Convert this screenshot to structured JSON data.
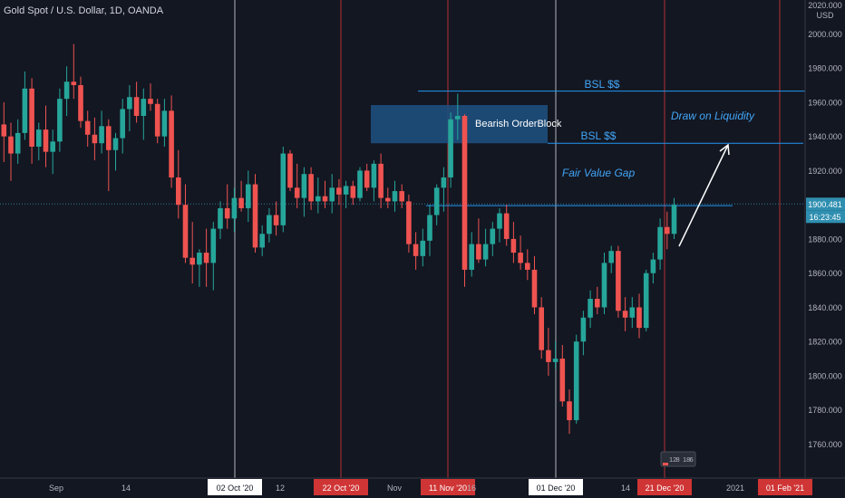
{
  "symbol_title": "Gold Spot / U.S. Dollar, 1D, OANDA",
  "colors": {
    "background": "#131722",
    "axis_text": "#b2b5be",
    "up": "#26a69a",
    "down": "#ef5350",
    "guide_line": "#2196f3",
    "annotation_text": "#42a5f5",
    "orderblock_fill": "#1e4f7d",
    "vline_white": "#cfd2d8",
    "vline_red": "#d03535",
    "price_tag": "#2f8fb0",
    "arrow": "#ffffff"
  },
  "annotations": {
    "bsl_top": "BSL $$",
    "bsl_mid": "BSL $$",
    "orderblock": "Bearish OrderBlock",
    "draw_liquidity": "Draw on Liquidity",
    "fair_value_gap": "Fair Value Gap"
  },
  "overlays": {
    "bsl_top_price": 1966.5,
    "bsl_mid_price": 1936,
    "target_line_price": 1899.5,
    "orderblock_range": [
      1936,
      1952
    ],
    "arrow_from": [
      20,
      1878
    ],
    "arrow_to": [
      21.8,
      1938
    ]
  },
  "price_label": {
    "current": "1900.481",
    "countdown": "16:23:45"
  },
  "bar_counter": [
    "12",
    "8",
    "18",
    "6"
  ],
  "chart_data": {
    "type": "candlestick",
    "title": "Gold Spot / U.S. Dollar, 1D, OANDA",
    "y_axis": {
      "unit": "USD",
      "top_label": "2020.000",
      "ticks": [
        "2000.000",
        "1980.000",
        "1960.000",
        "1940.000",
        "1920.000",
        "1900.000",
        "1880.000",
        "1860.000",
        "1840.000",
        "1820.000",
        "1800.000",
        "1780.000",
        "1760.000"
      ],
      "range": [
        1742,
        2025
      ]
    },
    "x_axis": {
      "labels": [
        {
          "text": "Sep",
          "style": "plain"
        },
        {
          "text": "14",
          "style": "plain"
        },
        {
          "text": "02 Oct '20",
          "style": "white"
        },
        {
          "text": "12",
          "style": "plain"
        },
        {
          "text": "22 Oct '20",
          "style": "red"
        },
        {
          "text": "Nov",
          "style": "plain"
        },
        {
          "text": "11 Nov '20",
          "style": "red"
        },
        {
          "text": "16",
          "style": "plain"
        },
        {
          "text": "01 Dec '20",
          "style": "white"
        },
        {
          "text": "14",
          "style": "plain"
        },
        {
          "text": "21 Dec '20",
          "style": "red"
        },
        {
          "text": "2021",
          "style": "plain"
        },
        {
          "text": "01 Feb '21",
          "style": "red"
        }
      ]
    },
    "vertical_markers": [
      {
        "date": "02 Oct '20",
        "color": "white"
      },
      {
        "date": "22 Oct '20",
        "color": "red"
      },
      {
        "date": "11 Nov '20",
        "color": "red"
      },
      {
        "date": "01 Dec '20",
        "color": "white"
      },
      {
        "date": "21 Dec '20",
        "color": "red"
      },
      {
        "date": "01 Feb '21",
        "color": "red"
      }
    ],
    "candles": [
      {
        "o": 1947,
        "h": 1960,
        "l": 1925,
        "c": 1940
      },
      {
        "o": 1940,
        "h": 1948,
        "l": 1914,
        "c": 1930
      },
      {
        "o": 1930,
        "h": 1950,
        "l": 1924,
        "c": 1942
      },
      {
        "o": 1942,
        "h": 1978,
        "l": 1938,
        "c": 1968
      },
      {
        "o": 1968,
        "h": 1974,
        "l": 1924,
        "c": 1934
      },
      {
        "o": 1934,
        "h": 1948,
        "l": 1926,
        "c": 1944
      },
      {
        "o": 1944,
        "h": 1958,
        "l": 1922,
        "c": 1931
      },
      {
        "o": 1931,
        "h": 1944,
        "l": 1918,
        "c": 1937
      },
      {
        "o": 1937,
        "h": 1968,
        "l": 1931,
        "c": 1962
      },
      {
        "o": 1962,
        "h": 1981,
        "l": 1952,
        "c": 1972
      },
      {
        "o": 1972,
        "h": 1994,
        "l": 1962,
        "c": 1970
      },
      {
        "o": 1970,
        "h": 1975,
        "l": 1945,
        "c": 1949
      },
      {
        "o": 1949,
        "h": 1955,
        "l": 1934,
        "c": 1941
      },
      {
        "o": 1941,
        "h": 1951,
        "l": 1926,
        "c": 1936
      },
      {
        "o": 1936,
        "h": 1955,
        "l": 1930,
        "c": 1946
      },
      {
        "o": 1946,
        "h": 1950,
        "l": 1908,
        "c": 1932
      },
      {
        "o": 1932,
        "h": 1942,
        "l": 1920,
        "c": 1939
      },
      {
        "o": 1939,
        "h": 1962,
        "l": 1930,
        "c": 1956
      },
      {
        "o": 1956,
        "h": 1970,
        "l": 1943,
        "c": 1963
      },
      {
        "o": 1963,
        "h": 1972,
        "l": 1948,
        "c": 1952
      },
      {
        "o": 1952,
        "h": 1968,
        "l": 1938,
        "c": 1962
      },
      {
        "o": 1962,
        "h": 1971,
        "l": 1955,
        "c": 1959
      },
      {
        "o": 1959,
        "h": 1962,
        "l": 1936,
        "c": 1940
      },
      {
        "o": 1940,
        "h": 1962,
        "l": 1934,
        "c": 1955
      },
      {
        "o": 1955,
        "h": 1964,
        "l": 1910,
        "c": 1916
      },
      {
        "o": 1916,
        "h": 1932,
        "l": 1892,
        "c": 1900
      },
      {
        "o": 1900,
        "h": 1912,
        "l": 1866,
        "c": 1869
      },
      {
        "o": 1869,
        "h": 1890,
        "l": 1854,
        "c": 1865
      },
      {
        "o": 1865,
        "h": 1874,
        "l": 1852,
        "c": 1872
      },
      {
        "o": 1872,
        "h": 1886,
        "l": 1852,
        "c": 1866
      },
      {
        "o": 1866,
        "h": 1890,
        "l": 1850,
        "c": 1886
      },
      {
        "o": 1886,
        "h": 1902,
        "l": 1880,
        "c": 1898
      },
      {
        "o": 1898,
        "h": 1912,
        "l": 1886,
        "c": 1892
      },
      {
        "o": 1892,
        "h": 1910,
        "l": 1884,
        "c": 1904
      },
      {
        "o": 1904,
        "h": 1914,
        "l": 1896,
        "c": 1898
      },
      {
        "o": 1898,
        "h": 1920,
        "l": 1890,
        "c": 1912
      },
      {
        "o": 1912,
        "h": 1918,
        "l": 1872,
        "c": 1875
      },
      {
        "o": 1875,
        "h": 1888,
        "l": 1870,
        "c": 1883
      },
      {
        "o": 1883,
        "h": 1898,
        "l": 1878,
        "c": 1894
      },
      {
        "o": 1894,
        "h": 1902,
        "l": 1882,
        "c": 1888
      },
      {
        "o": 1888,
        "h": 1934,
        "l": 1884,
        "c": 1930
      },
      {
        "o": 1930,
        "h": 1932,
        "l": 1908,
        "c": 1910
      },
      {
        "o": 1910,
        "h": 1924,
        "l": 1898,
        "c": 1904
      },
      {
        "o": 1904,
        "h": 1922,
        "l": 1893,
        "c": 1918
      },
      {
        "o": 1918,
        "h": 1922,
        "l": 1897,
        "c": 1902
      },
      {
        "o": 1902,
        "h": 1916,
        "l": 1895,
        "c": 1905
      },
      {
        "o": 1905,
        "h": 1914,
        "l": 1898,
        "c": 1902
      },
      {
        "o": 1902,
        "h": 1918,
        "l": 1895,
        "c": 1910
      },
      {
        "o": 1910,
        "h": 1915,
        "l": 1900,
        "c": 1906
      },
      {
        "o": 1906,
        "h": 1914,
        "l": 1898,
        "c": 1911
      },
      {
        "o": 1911,
        "h": 1914,
        "l": 1900,
        "c": 1904
      },
      {
        "o": 1904,
        "h": 1922,
        "l": 1902,
        "c": 1920
      },
      {
        "o": 1920,
        "h": 1924,
        "l": 1908,
        "c": 1910
      },
      {
        "o": 1910,
        "h": 1926,
        "l": 1902,
        "c": 1924
      },
      {
        "o": 1924,
        "h": 1930,
        "l": 1898,
        "c": 1904
      },
      {
        "o": 1904,
        "h": 1910,
        "l": 1898,
        "c": 1902
      },
      {
        "o": 1902,
        "h": 1914,
        "l": 1896,
        "c": 1908
      },
      {
        "o": 1908,
        "h": 1912,
        "l": 1898,
        "c": 1902
      },
      {
        "o": 1902,
        "h": 1906,
        "l": 1872,
        "c": 1877
      },
      {
        "o": 1877,
        "h": 1884,
        "l": 1862,
        "c": 1870
      },
      {
        "o": 1870,
        "h": 1886,
        "l": 1864,
        "c": 1879
      },
      {
        "o": 1879,
        "h": 1900,
        "l": 1870,
        "c": 1894
      },
      {
        "o": 1894,
        "h": 1912,
        "l": 1888,
        "c": 1910
      },
      {
        "o": 1910,
        "h": 1922,
        "l": 1896,
        "c": 1916
      },
      {
        "o": 1916,
        "h": 1954,
        "l": 1910,
        "c": 1950
      },
      {
        "o": 1950,
        "h": 1965,
        "l": 1938,
        "c": 1952
      },
      {
        "o": 1952,
        "h": 1953,
        "l": 1852,
        "c": 1862
      },
      {
        "o": 1862,
        "h": 1884,
        "l": 1858,
        "c": 1877
      },
      {
        "o": 1877,
        "h": 1892,
        "l": 1866,
        "c": 1868
      },
      {
        "o": 1868,
        "h": 1886,
        "l": 1864,
        "c": 1877
      },
      {
        "o": 1877,
        "h": 1890,
        "l": 1870,
        "c": 1886
      },
      {
        "o": 1886,
        "h": 1898,
        "l": 1878,
        "c": 1895
      },
      {
        "o": 1895,
        "h": 1900,
        "l": 1876,
        "c": 1880
      },
      {
        "o": 1880,
        "h": 1890,
        "l": 1866,
        "c": 1872
      },
      {
        "o": 1872,
        "h": 1882,
        "l": 1862,
        "c": 1866
      },
      {
        "o": 1866,
        "h": 1874,
        "l": 1856,
        "c": 1862
      },
      {
        "o": 1862,
        "h": 1870,
        "l": 1836,
        "c": 1840
      },
      {
        "o": 1840,
        "h": 1846,
        "l": 1810,
        "c": 1815
      },
      {
        "o": 1815,
        "h": 1828,
        "l": 1800,
        "c": 1808
      },
      {
        "o": 1808,
        "h": 1820,
        "l": 1804,
        "c": 1810
      },
      {
        "o": 1810,
        "h": 1818,
        "l": 1782,
        "c": 1785
      },
      {
        "o": 1785,
        "h": 1792,
        "l": 1766,
        "c": 1774
      },
      {
        "o": 1774,
        "h": 1824,
        "l": 1772,
        "c": 1820
      },
      {
        "o": 1820,
        "h": 1838,
        "l": 1812,
        "c": 1834
      },
      {
        "o": 1834,
        "h": 1850,
        "l": 1828,
        "c": 1845
      },
      {
        "o": 1845,
        "h": 1852,
        "l": 1836,
        "c": 1840
      },
      {
        "o": 1840,
        "h": 1872,
        "l": 1836,
        "c": 1866
      },
      {
        "o": 1866,
        "h": 1876,
        "l": 1860,
        "c": 1873
      },
      {
        "o": 1873,
        "h": 1876,
        "l": 1834,
        "c": 1838
      },
      {
        "o": 1838,
        "h": 1846,
        "l": 1826,
        "c": 1834
      },
      {
        "o": 1834,
        "h": 1846,
        "l": 1828,
        "c": 1840
      },
      {
        "o": 1840,
        "h": 1848,
        "l": 1822,
        "c": 1828
      },
      {
        "o": 1828,
        "h": 1862,
        "l": 1826,
        "c": 1860
      },
      {
        "o": 1860,
        "h": 1872,
        "l": 1854,
        "c": 1868
      },
      {
        "o": 1868,
        "h": 1892,
        "l": 1862,
        "c": 1887
      },
      {
        "o": 1887,
        "h": 1896,
        "l": 1874,
        "c": 1883
      },
      {
        "o": 1883,
        "h": 1904,
        "l": 1880,
        "c": 1900
      }
    ]
  }
}
